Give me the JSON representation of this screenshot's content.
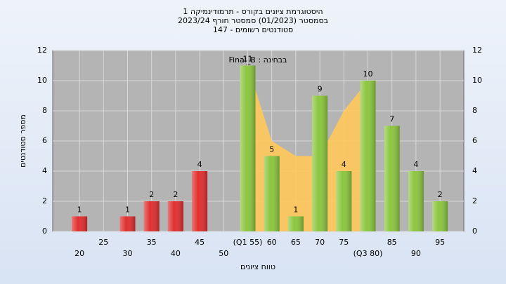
{
  "chart_data": {
    "type": "bar",
    "title_lines": [
      "היסטוגרמת ציונים בקורס - תרמודינמיקה 1",
      "בסמסטר  (01/2023)  סמסטר חורף  2023/24",
      "סטודנטים רשומים - 147"
    ],
    "annotation": "Final_B : בבחינה",
    "x_label": "טווח ציונים",
    "y_label": "מספר סטודנטים",
    "categories": [
      "20",
      "25",
      "30",
      "35",
      "40",
      "45",
      "50",
      "(Q1 55)",
      "60",
      "65",
      "70",
      "75",
      "(Q3 80)",
      "85",
      "90",
      "95"
    ],
    "values": [
      1,
      0,
      1,
      2,
      2,
      4,
      0,
      11,
      5,
      1,
      9,
      4,
      10,
      7,
      4,
      2
    ],
    "bar_colors": [
      "#e03030",
      "#e03030",
      "#e03030",
      "#e03030",
      "#e03030",
      "#e03030",
      "#e03030",
      "#8cc63f",
      "#8cc63f",
      "#8cc63f",
      "#8cc63f",
      "#8cc63f",
      "#8cc63f",
      "#8cc63f",
      "#8cc63f",
      "#8cc63f"
    ],
    "area_values": [
      null,
      null,
      null,
      null,
      null,
      null,
      null,
      11,
      6,
      5,
      5,
      8,
      10,
      null,
      null,
      null
    ],
    "area_color": "#ffc85a",
    "ylim": [
      0,
      12
    ],
    "yticks": [
      0,
      2,
      4,
      6,
      8,
      10,
      12
    ],
    "grid": true
  }
}
